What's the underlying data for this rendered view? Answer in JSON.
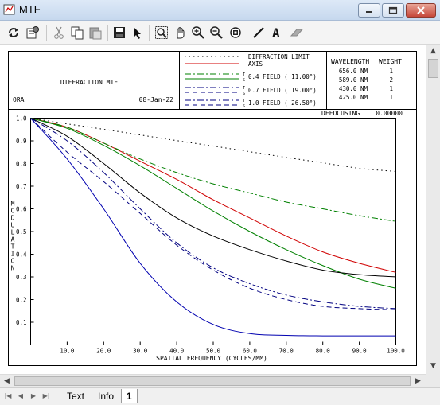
{
  "window": {
    "title": "MTF"
  },
  "toolbar": {
    "buttons": [
      "refresh-icon",
      "settings-icon",
      "cut-icon",
      "copy-icon",
      "paste-icon",
      "save-icon",
      "pointer-icon",
      "zoom-box-icon",
      "pan-icon",
      "zoom-in-icon",
      "zoom-out-icon",
      "print-preview-icon",
      "line-tool-icon",
      "text-tool-icon",
      "eraser-icon"
    ]
  },
  "header": {
    "chart_title": "DIFFRACTION MTF",
    "project": "ORA",
    "date": "08-Jan-22",
    "legend": [
      {
        "label": "DIFFRACTION LIMIT",
        "style": "dotted",
        "color": "#000000",
        "tick": ""
      },
      {
        "label": "AXIS",
        "style": "solid",
        "color": "#d00000",
        "tick": ""
      },
      {
        "label": "0.4 FIELD ( 11.00°)",
        "style": "dashdot",
        "color": "#008000",
        "tick": "T\nS"
      },
      {
        "label": "0.7 FIELD ( 19.00°)",
        "style": "mixed",
        "color": "#000080",
        "tick": "T\nS"
      },
      {
        "label": "1.0 FIELD ( 26.50°)",
        "style": "mixed",
        "color": "#000080",
        "tick": "T\nS"
      }
    ],
    "wave_headers": [
      "WAVELENGTH",
      "WEIGHT"
    ],
    "wavelengths": [
      {
        "wavelength": "656.0 NM",
        "weight": "1"
      },
      {
        "wavelength": "589.0 NM",
        "weight": "2"
      },
      {
        "wavelength": "430.0 NM",
        "weight": "1"
      },
      {
        "wavelength": "425.0 NM",
        "weight": "1"
      }
    ],
    "defocusing_label": "DEFOCUSING",
    "defocusing_value": "0.00000"
  },
  "chart_data": {
    "type": "line",
    "xlabel": "SPATIAL FREQUENCY (CYCLES/MM)",
    "ylabel": "MODULATION",
    "xlim": [
      0,
      100
    ],
    "ylim": [
      0,
      1.0
    ],
    "xticks": [
      "10.0",
      "20.0",
      "30.0",
      "40.0",
      "50.0",
      "60.0",
      "70.0",
      "80.0",
      "90.0",
      "100.0"
    ],
    "yticks": [
      "0.1",
      "0.2",
      "0.3",
      "0.4",
      "0.5",
      "0.6",
      "0.7",
      "0.8",
      "0.9",
      "1.0"
    ],
    "series": [
      {
        "name": "DIFFRACTION LIMIT",
        "color": "#000000",
        "dash": "dotted",
        "x": [
          0,
          10,
          20,
          30,
          40,
          50,
          60,
          70,
          80,
          90,
          100
        ],
        "y": [
          1.0,
          0.975,
          0.951,
          0.926,
          0.901,
          0.877,
          0.852,
          0.827,
          0.803,
          0.779,
          0.765
        ]
      },
      {
        "name": "AXIS",
        "color": "#d00000",
        "dash": "solid",
        "x": [
          0,
          10,
          20,
          30,
          40,
          50,
          60,
          70,
          80,
          90,
          100
        ],
        "y": [
          1.0,
          0.96,
          0.89,
          0.81,
          0.73,
          0.64,
          0.56,
          0.48,
          0.41,
          0.36,
          0.32
        ]
      },
      {
        "name": "0.4 FIELD T",
        "color": "#008000",
        "dash": "dashdot",
        "x": [
          0,
          10,
          20,
          30,
          40,
          50,
          60,
          70,
          80,
          90,
          100
        ],
        "y": [
          1.0,
          0.96,
          0.89,
          0.82,
          0.76,
          0.71,
          0.67,
          0.63,
          0.6,
          0.57,
          0.545
        ]
      },
      {
        "name": "0.4 FIELD S",
        "color": "#008000",
        "dash": "solid",
        "x": [
          0,
          10,
          20,
          30,
          40,
          50,
          60,
          70,
          80,
          90,
          100
        ],
        "y": [
          1.0,
          0.955,
          0.88,
          0.79,
          0.69,
          0.59,
          0.5,
          0.42,
          0.35,
          0.29,
          0.25
        ]
      },
      {
        "name": "0.7 FIELD T",
        "color": "#000080",
        "dash": "dashed",
        "x": [
          0,
          10,
          20,
          30,
          40,
          50,
          60,
          70,
          80,
          90,
          100
        ],
        "y": [
          1.0,
          0.85,
          0.72,
          0.58,
          0.44,
          0.33,
          0.25,
          0.2,
          0.17,
          0.16,
          0.155
        ]
      },
      {
        "name": "0.7 FIELD S",
        "color": "#000000",
        "dash": "solid",
        "x": [
          0,
          10,
          20,
          30,
          40,
          50,
          60,
          70,
          80,
          90,
          100
        ],
        "y": [
          1.0,
          0.92,
          0.8,
          0.67,
          0.56,
          0.48,
          0.42,
          0.37,
          0.33,
          0.31,
          0.3
        ]
      },
      {
        "name": "1.0 FIELD T",
        "color": "#0000b0",
        "dash": "solid",
        "x": [
          0,
          10,
          20,
          30,
          40,
          50,
          60,
          70,
          80,
          90,
          100
        ],
        "y": [
          1.0,
          0.82,
          0.6,
          0.36,
          0.19,
          0.09,
          0.05,
          0.042,
          0.04,
          0.04,
          0.04
        ]
      },
      {
        "name": "1.0 FIELD S",
        "color": "#000080",
        "dash": "dashdot",
        "x": [
          0,
          10,
          20,
          30,
          40,
          50,
          60,
          70,
          80,
          90,
          100
        ],
        "y": [
          1.0,
          0.9,
          0.76,
          0.6,
          0.45,
          0.34,
          0.27,
          0.22,
          0.19,
          0.17,
          0.16
        ]
      }
    ]
  }
}
